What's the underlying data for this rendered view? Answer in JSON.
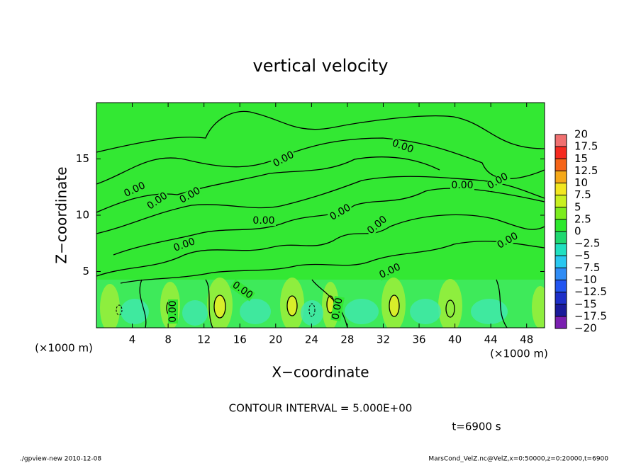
{
  "chart_data": {
    "type": "contour",
    "title": "vertical velocity",
    "x_label": "X−coordinate",
    "y_label": "Z−coordinate",
    "x_units": [
      "(×1000 m)",
      "(×1000 m)"
    ],
    "xlim": [
      0,
      50
    ],
    "xticks": [
      4,
      8,
      12,
      16,
      20,
      24,
      28,
      32,
      36,
      40,
      44,
      48
    ],
    "ylim": [
      0,
      20
    ],
    "yticks": [
      5,
      10,
      15
    ],
    "contour_labels": [
      "0.00",
      "0.00",
      "0.00",
      "0.00",
      "0.00",
      "0.00",
      "0.00",
      "0.00",
      "0.00",
      "0.00",
      "0.00",
      "0.00",
      "0.00",
      "0.00",
      "0.00",
      "0.00"
    ],
    "colorbar": {
      "lim": [
        -20,
        20
      ],
      "ticks": [
        {
          "value": -20,
          "label": "−20"
        },
        {
          "value": -17.5,
          "label": "−17.5"
        },
        {
          "value": -15,
          "label": "−15"
        },
        {
          "value": -12.5,
          "label": "−12.5"
        },
        {
          "value": -10,
          "label": "−10"
        },
        {
          "value": -7.5,
          "label": "−7.5"
        },
        {
          "value": -5,
          "label": "−5"
        },
        {
          "value": -2.5,
          "label": "−2.5"
        },
        0,
        2.5,
        5,
        7.5,
        10,
        12.5,
        15,
        17.5,
        20
      ],
      "colors": [
        "#7a1fb0",
        "#1a1a9a",
        "#1d2fc8",
        "#2255f0",
        "#2f8cf5",
        "#29c8f0",
        "#20e0c0",
        "#1fd870",
        "#2ee82e",
        "#7cec1e",
        "#c8f020",
        "#f2e620",
        "#f5a818",
        "#f56418",
        "#f52a20",
        "#f07070",
        "#f7a8a8"
      ]
    },
    "contour_interval": "CONTOUR INTERVAL = 5.000E+00",
    "time_label": "t=6900 s",
    "footer_left": "./gpview-new   2010-12-08",
    "footer_right": "MarsCond_VelZ.nc@VelZ,x=0:50000,z=0:20000,t=6900"
  }
}
